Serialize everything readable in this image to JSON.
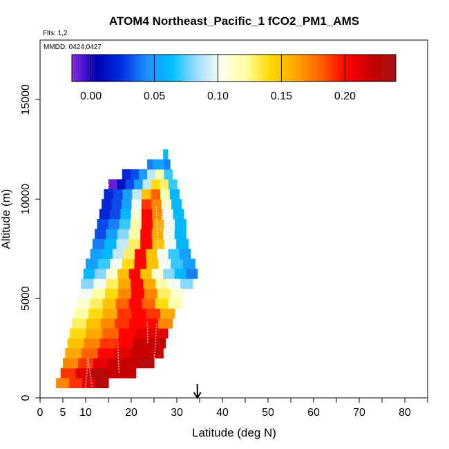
{
  "chart_data": {
    "type": "heatmap",
    "title": "ATOM4 Northeast_Pacific_1 fCO2_PM1_AMS",
    "flights_note": "Flts: 1,2",
    "mmdd_note": "MMDD: 0424,0427",
    "xlabel": "Latitude (deg N)",
    "ylabel": "Altitude (m)",
    "xlim": [
      0,
      85
    ],
    "ylim": [
      0,
      18000
    ],
    "x_tick_labels": [
      "0",
      "5",
      "10",
      "20",
      "30",
      "40",
      "50",
      "60",
      "70",
      "80"
    ],
    "x_tick_values": [
      0,
      5,
      10,
      20,
      30,
      40,
      50,
      60,
      70,
      80
    ],
    "y_tick_labels": [
      "0",
      "5000",
      "10000",
      "15000"
    ],
    "y_tick_values": [
      0,
      5000,
      10000,
      15000
    ],
    "colorbar": {
      "range": [
        -0.015,
        0.24
      ],
      "tick_labels": [
        "0.00",
        "0.05",
        "0.10",
        "0.15",
        "0.20"
      ],
      "tick_values": [
        0.0,
        0.05,
        0.1,
        0.15,
        0.2
      ],
      "colors": [
        "#8a2be2",
        "#0000b4",
        "#0030e0",
        "#1e90ff",
        "#00bfff",
        "#a0dcff",
        "#fffff0",
        "#ffffa0",
        "#ffd700",
        "#ffa500",
        "#ff6000",
        "#ff0000",
        "#c80000",
        "#a01414"
      ]
    },
    "marker_latitude": 34.5,
    "layer_height_m": 500,
    "layers": [
      {
        "alt": 750,
        "lat_min": 3.5,
        "lat_max": 15.0,
        "values": [
          0.17,
          0.19,
          0.21,
          0.23
        ]
      },
      {
        "alt": 1250,
        "lat_min": 4.5,
        "lat_max": 21.0,
        "values": [
          0.19,
          0.21,
          0.23,
          0.22,
          0.22
        ]
      },
      {
        "alt": 1750,
        "lat_min": 5.0,
        "lat_max": 25.0,
        "values": [
          0.17,
          0.19,
          0.21,
          0.22,
          0.22,
          0.23
        ]
      },
      {
        "alt": 2250,
        "lat_min": 5.5,
        "lat_max": 27.0,
        "values": [
          0.16,
          0.18,
          0.2,
          0.21,
          0.22,
          0.22
        ]
      },
      {
        "alt": 2750,
        "lat_min": 6.0,
        "lat_max": 27.5,
        "values": [
          0.15,
          0.17,
          0.19,
          0.2,
          0.22,
          0.22
        ]
      },
      {
        "alt": 3250,
        "lat_min": 6.5,
        "lat_max": 28.0,
        "values": [
          0.14,
          0.16,
          0.18,
          0.2,
          0.21,
          0.21
        ]
      },
      {
        "alt": 3750,
        "lat_min": 7.0,
        "lat_max": 29.0,
        "values": [
          0.13,
          0.15,
          0.17,
          0.19,
          0.2,
          0.2,
          0.17
        ]
      },
      {
        "alt": 4250,
        "lat_min": 7.5,
        "lat_max": 29.5,
        "values": [
          0.12,
          0.14,
          0.16,
          0.19,
          0.2,
          0.19,
          0.16
        ]
      },
      {
        "alt": 4750,
        "lat_min": 8.0,
        "lat_max": 31.0,
        "values": [
          0.11,
          0.13,
          0.15,
          0.18,
          0.2,
          0.18,
          0.14,
          0.12
        ]
      },
      {
        "alt": 5250,
        "lat_min": 8.5,
        "lat_max": 31.5,
        "values": [
          0.1,
          0.12,
          0.14,
          0.17,
          0.2,
          0.17,
          0.13,
          0.11
        ]
      },
      {
        "alt": 5750,
        "lat_min": 9.0,
        "lat_max": 33.5,
        "values": [
          0.08,
          0.1,
          0.13,
          0.16,
          0.2,
          0.16,
          0.12,
          0.1,
          0.08
        ]
      },
      {
        "alt": 6250,
        "lat_min": 9.5,
        "lat_max": 34.5,
        "values": [
          0.06,
          0.08,
          0.11,
          0.15,
          0.2,
          0.15,
          0.11,
          0.08,
          0.06,
          0.04
        ]
      },
      {
        "alt": 6750,
        "lat_min": 10.0,
        "lat_max": 34.0,
        "values": [
          0.05,
          0.07,
          0.1,
          0.14,
          0.2,
          0.15,
          0.1,
          0.07,
          0.05
        ]
      },
      {
        "alt": 7250,
        "lat_min": 11.0,
        "lat_max": 33.0,
        "values": [
          0.05,
          0.06,
          0.09,
          0.13,
          0.2,
          0.15,
          0.1,
          0.07,
          0.05
        ]
      },
      {
        "alt": 7750,
        "lat_min": 11.5,
        "lat_max": 32.5,
        "values": [
          0.04,
          0.06,
          0.09,
          0.13,
          0.2,
          0.15,
          0.1,
          0.06
        ]
      },
      {
        "alt": 8250,
        "lat_min": 12.0,
        "lat_max": 32.0,
        "values": [
          0.03,
          0.05,
          0.08,
          0.12,
          0.2,
          0.16,
          0.1,
          0.06
        ]
      },
      {
        "alt": 8750,
        "lat_min": 12.5,
        "lat_max": 32.0,
        "values": [
          0.03,
          0.04,
          0.07,
          0.12,
          0.2,
          0.16,
          0.1,
          0.06
        ]
      },
      {
        "alt": 9250,
        "lat_min": 13.0,
        "lat_max": 31.5,
        "values": [
          0.02,
          0.03,
          0.06,
          0.11,
          0.2,
          0.17,
          0.1,
          0.06
        ]
      },
      {
        "alt": 9750,
        "lat_min": 13.5,
        "lat_max": 31.0,
        "values": [
          0.02,
          0.03,
          0.05,
          0.1,
          0.19,
          0.17,
          0.11,
          0.06
        ]
      },
      {
        "alt": 10250,
        "lat_min": 14.0,
        "lat_max": 30.5,
        "values": [
          0.02,
          0.03,
          0.05,
          0.09,
          0.15,
          0.18,
          0.12,
          0.06
        ]
      },
      {
        "alt": 10750,
        "lat_min": 15.0,
        "lat_max": 30.0,
        "values": [
          -0.01,
          0.01,
          0.03,
          0.05,
          0.09,
          0.14,
          0.13,
          0.07
        ]
      },
      {
        "alt": 11250,
        "lat_min": 18.0,
        "lat_max": 29.0,
        "values": [
          0.02,
          0.03,
          0.05,
          0.09,
          0.12,
          0.07
        ]
      },
      {
        "alt": 11750,
        "lat_min": 23.5,
        "lat_max": 28.5,
        "values": [
          0.04,
          0.05,
          0.05,
          0.04
        ]
      },
      {
        "alt": 12250,
        "lat_min": 27.0,
        "lat_max": 28.0,
        "values": [
          0.06
        ]
      }
    ],
    "flight_tracks": [
      [
        [
          10.0,
          100
        ],
        [
          10.0,
          600
        ],
        [
          10.2,
          1100
        ],
        [
          10.4,
          1600
        ],
        [
          10.5,
          2000
        ]
      ],
      [
        [
          10.5,
          2000
        ],
        [
          10.9,
          1400
        ],
        [
          11.2,
          900
        ],
        [
          11.5,
          400
        ]
      ],
      [
        [
          17.0,
          3000
        ],
        [
          17.1,
          2400
        ],
        [
          17.2,
          1800
        ],
        [
          17.4,
          1200
        ]
      ],
      [
        [
          23.5,
          3800
        ],
        [
          23.6,
          3200
        ],
        [
          23.6,
          2700
        ]
      ],
      [
        [
          25.5,
          3700
        ],
        [
          25.4,
          3200
        ],
        [
          25.3,
          2600
        ],
        [
          25.0,
          2000
        ]
      ],
      [
        [
          25.5,
          9600
        ],
        [
          25.7,
          8600
        ],
        [
          25.9,
          7600
        ],
        [
          26.1,
          6600
        ],
        [
          26.2,
          5900
        ]
      ],
      [
        [
          26.5,
          8400
        ],
        [
          26.8,
          9200
        ],
        [
          27.0,
          10000
        ],
        [
          27.2,
          10700
        ]
      ],
      [
        [
          14.9,
          10700
        ],
        [
          15.4,
          10700
        ]
      ],
      [
        [
          33.5,
          5600
        ],
        [
          34.5,
          5600
        ]
      ]
    ]
  }
}
